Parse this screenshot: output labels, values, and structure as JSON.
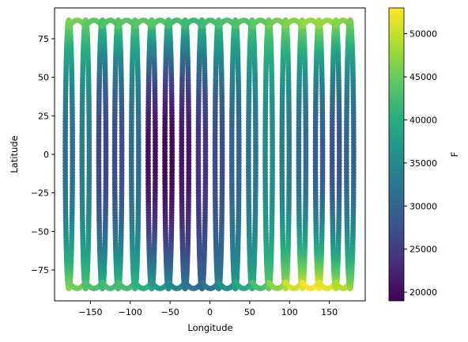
{
  "chart_data": {
    "type": "scatter",
    "title": "",
    "xlabel": "Longitude",
    "ylabel": "Latitude",
    "xlim": [
      -195,
      195
    ],
    "ylim": [
      -95,
      95
    ],
    "xticks": [
      -150,
      -100,
      -50,
      0,
      50,
      100,
      150
    ],
    "yticks": [
      -75,
      -50,
      -25,
      0,
      25,
      50,
      75
    ],
    "colormap": "viridis",
    "colorbar": {
      "label": "F",
      "min": 19000,
      "max": 53000,
      "ticks": [
        20000,
        25000,
        30000,
        35000,
        40000,
        45000,
        50000
      ]
    },
    "tracks": [
      {
        "lon": -177,
        "f_equator": 31000,
        "f_north": 46000,
        "f_south": 47000
      },
      {
        "lon": -156,
        "f_equator": 33000,
        "f_north": 45000,
        "f_south": 44000
      },
      {
        "lon": -135,
        "f_equator": 26000,
        "f_north": 43000,
        "f_south": 42000
      },
      {
        "lon": -115,
        "f_equator": 27000,
        "f_north": 44000,
        "f_south": 43000
      },
      {
        "lon": -94,
        "f_equator": 31000,
        "f_north": 44000,
        "f_south": 42000
      },
      {
        "lon": -73,
        "f_equator": 20500,
        "f_north": 44000,
        "f_south": 39000
      },
      {
        "lon": -52,
        "f_equator": 19500,
        "f_north": 43000,
        "f_south": 36000
      },
      {
        "lon": -31,
        "f_equator": 21000,
        "f_north": 42000,
        "f_south": 33000
      },
      {
        "lon": -10,
        "f_equator": 24000,
        "f_north": 42000,
        "f_south": 31000
      },
      {
        "lon": 11,
        "f_equator": 27000,
        "f_north": 43000,
        "f_south": 34000
      },
      {
        "lon": 32,
        "f_equator": 30000,
        "f_north": 43000,
        "f_south": 38000
      },
      {
        "lon": 53,
        "f_equator": 32000,
        "f_north": 44000,
        "f_south": 41000
      },
      {
        "lon": 74,
        "f_equator": 35000,
        "f_north": 45000,
        "f_south": 45000
      },
      {
        "lon": 95,
        "f_equator": 33000,
        "f_north": 46000,
        "f_south": 49000
      },
      {
        "lon": 116,
        "f_equator": 31000,
        "f_north": 47000,
        "f_south": 52000
      },
      {
        "lon": 137,
        "f_equator": 29000,
        "f_north": 48000,
        "f_south": 53000
      },
      {
        "lon": 158,
        "f_equator": 28000,
        "f_north": 47000,
        "f_south": 50000
      },
      {
        "lon": 176,
        "f_equator": 30000,
        "f_north": 46000,
        "f_south": 48000
      }
    ]
  }
}
